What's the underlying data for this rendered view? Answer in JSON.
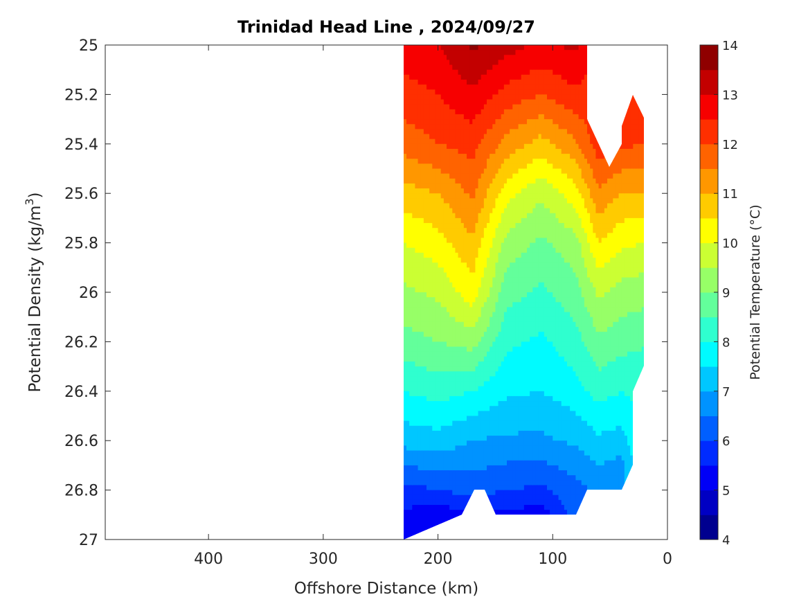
{
  "chart_data": {
    "type": "heatmap",
    "subtype": "filled-contour",
    "title": "Trinidad Head Line , 2024/09/27",
    "xlabel": "Offshore Distance (km)",
    "ylabel_main": "Potential Density (kg/m",
    "ylabel_sup": "3",
    "ylabel_end": ")",
    "xlim": [
      490,
      0
    ],
    "x_reversed": true,
    "ylim": [
      25,
      27
    ],
    "y_reversed": true,
    "x_ticks": [
      "400",
      "300",
      "200",
      "100",
      "0"
    ],
    "x_tick_values": [
      400,
      300,
      200,
      100,
      0
    ],
    "y_ticks": [
      "25",
      "25.2",
      "25.4",
      "25.6",
      "25.8",
      "26",
      "26.2",
      "26.4",
      "26.6",
      "26.8",
      "27"
    ],
    "y_tick_values": [
      25,
      25.2,
      25.4,
      25.6,
      25.8,
      26,
      26.2,
      26.4,
      26.6,
      26.8,
      27
    ],
    "colorbar": {
      "label": "Potential Temperature (°C)",
      "range": [
        4,
        14
      ],
      "ticks": [
        "4",
        "5",
        "6",
        "7",
        "8",
        "9",
        "10",
        "11",
        "12",
        "13",
        "14"
      ],
      "tick_values": [
        4,
        5,
        6,
        7,
        8,
        9,
        10,
        11,
        12,
        13,
        14
      ],
      "level_step": 0.5,
      "colors": [
        "#00008f",
        "#0000c3",
        "#0000f7",
        "#002bff",
        "#005fff",
        "#0093ff",
        "#00c7ff",
        "#00fbff",
        "#2fffcf",
        "#63ff9b",
        "#97ff67",
        "#cbff33",
        "#ffff00",
        "#ffcb00",
        "#ff9700",
        "#ff6300",
        "#ff2f00",
        "#f70000",
        "#c30000",
        "#8f0000"
      ]
    },
    "data_extent_km": [
      230,
      20
    ],
    "stations": [
      {
        "x": 230,
        "temps": [
          [
            25.0,
            12.8
          ],
          [
            25.2,
            12.3
          ],
          [
            25.4,
            11.7
          ],
          [
            25.6,
            10.8
          ],
          [
            25.8,
            10.0
          ],
          [
            26.0,
            9.4
          ],
          [
            26.2,
            8.8
          ],
          [
            26.4,
            8.0
          ],
          [
            26.6,
            7.2
          ],
          [
            26.8,
            5.8
          ],
          [
            27.0,
            5.0
          ]
        ]
      },
      {
        "x": 200,
        "temps": [
          [
            25.0,
            13.0
          ],
          [
            25.2,
            12.5
          ],
          [
            25.4,
            12.0
          ],
          [
            25.6,
            11.0
          ],
          [
            25.8,
            10.3
          ],
          [
            26.0,
            9.6
          ],
          [
            26.2,
            9.0
          ],
          [
            26.4,
            8.2
          ],
          [
            26.6,
            7.3
          ],
          [
            26.8,
            6.0
          ],
          [
            26.9,
            5.2
          ]
        ]
      },
      {
        "x": 170,
        "temps": [
          [
            25.0,
            13.6
          ],
          [
            25.2,
            12.9
          ],
          [
            25.4,
            12.2
          ],
          [
            25.6,
            11.6
          ],
          [
            25.8,
            10.9
          ],
          [
            26.0,
            10.3
          ],
          [
            26.2,
            9.2
          ],
          [
            26.4,
            8.0
          ],
          [
            26.6,
            7.0
          ],
          [
            26.8,
            6.2
          ],
          [
            26.9,
            5.4
          ]
        ]
      },
      {
        "x": 140,
        "temps": [
          [
            25.0,
            13.2
          ],
          [
            25.2,
            12.3
          ],
          [
            25.4,
            11.3
          ],
          [
            25.6,
            10.2
          ],
          [
            25.8,
            9.3
          ],
          [
            26.0,
            8.7
          ],
          [
            26.2,
            8.1
          ],
          [
            26.4,
            7.6
          ],
          [
            26.6,
            6.9
          ],
          [
            26.8,
            6.0
          ],
          [
            26.9,
            5.4
          ]
        ]
      },
      {
        "x": 110,
        "temps": [
          [
            25.0,
            12.9
          ],
          [
            25.2,
            12.0
          ],
          [
            25.4,
            10.8
          ],
          [
            25.6,
            9.6
          ],
          [
            25.8,
            8.9
          ],
          [
            26.0,
            8.4
          ],
          [
            26.2,
            7.9
          ],
          [
            26.4,
            7.5
          ],
          [
            26.6,
            6.9
          ],
          [
            26.8,
            5.9
          ],
          [
            26.9,
            5.2
          ]
        ]
      },
      {
        "x": 80,
        "temps": [
          [
            25.0,
            13.1
          ],
          [
            25.2,
            12.4
          ],
          [
            25.4,
            11.4
          ],
          [
            25.6,
            10.3
          ],
          [
            25.8,
            9.3
          ],
          [
            26.0,
            8.8
          ],
          [
            26.2,
            8.3
          ],
          [
            26.4,
            7.8
          ],
          [
            26.6,
            7.1
          ],
          [
            26.8,
            6.3
          ]
        ]
      },
      {
        "x": 60,
        "temps": [
          [
            25.4,
            12.3
          ],
          [
            25.6,
            11.4
          ],
          [
            25.8,
            10.5
          ],
          [
            26.0,
            9.6
          ],
          [
            26.2,
            8.9
          ],
          [
            26.4,
            8.2
          ],
          [
            26.6,
            7.4
          ],
          [
            26.8,
            6.6
          ]
        ]
      },
      {
        "x": 40,
        "temps": [
          [
            25.4,
            12.1
          ],
          [
            25.6,
            11.0
          ],
          [
            25.8,
            10.1
          ],
          [
            26.0,
            9.3
          ],
          [
            26.2,
            8.7
          ],
          [
            26.4,
            8.0
          ],
          [
            26.6,
            7.3
          ],
          [
            26.7,
            6.8
          ]
        ]
      },
      {
        "x": 20,
        "temps": [
          [
            25.3,
            12.5
          ],
          [
            25.4,
            12.0
          ],
          [
            25.6,
            11.0
          ],
          [
            25.8,
            10.0
          ],
          [
            26.0,
            9.2
          ],
          [
            26.2,
            8.6
          ],
          [
            26.3,
            8.2
          ]
        ]
      }
    ]
  }
}
